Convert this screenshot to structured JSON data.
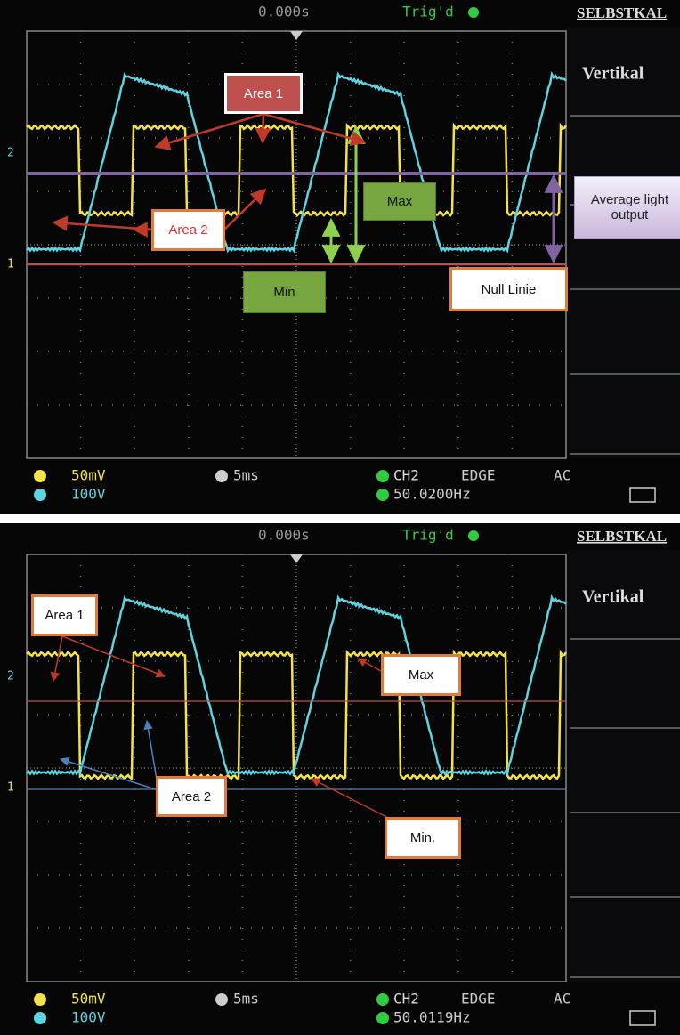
{
  "panels": [
    {
      "header": {
        "time": "0.000s",
        "trigger": "Trig'd",
        "menu_title": "SELBSTKAL"
      },
      "menu": "Vertikal",
      "markers": [
        "2",
        "1"
      ],
      "annotations": [
        "Area 1",
        "Area 2",
        "Max",
        "Min",
        "Null Linie",
        "Average light output"
      ],
      "status": {
        "ch1": "50mV",
        "ch2": "100V",
        "timebase": "5ms",
        "source": "CH2",
        "mode": "EDGE",
        "coupling": "AC",
        "frequency": "50.0200Hz"
      }
    },
    {
      "header": {
        "time": "0.000s",
        "trigger": "Trig'd",
        "menu_title": "SELBSTKAL"
      },
      "menu": "Vertikal",
      "markers": [
        "2",
        "1"
      ],
      "annotations": [
        "Area 1",
        "Max",
        "Area 2",
        "Min."
      ],
      "status": {
        "ch1": "50mV",
        "ch2": "100V",
        "timebase": "5ms",
        "source": "CH2",
        "mode": "EDGE",
        "coupling": "AC",
        "frequency": "50.0119Hz"
      }
    }
  ]
}
